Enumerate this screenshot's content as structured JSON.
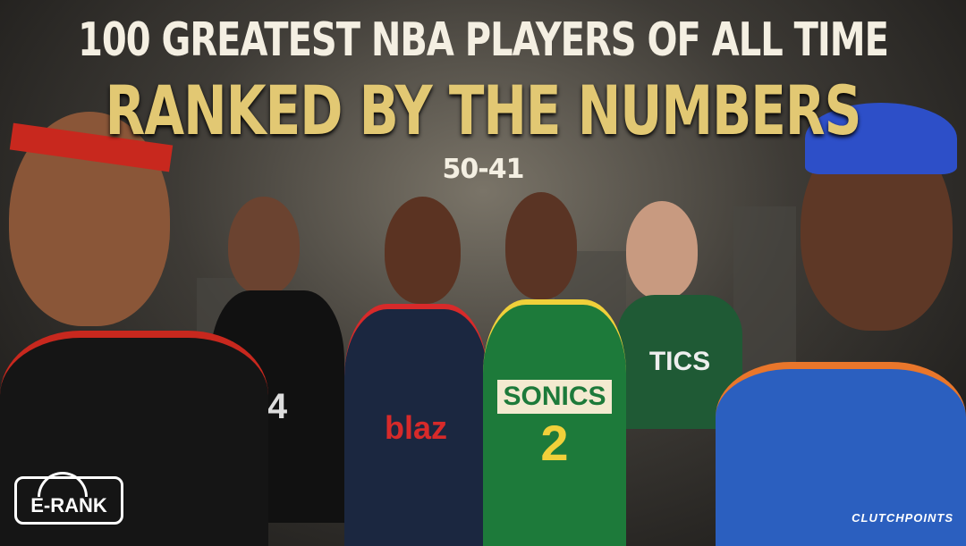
{
  "header": {
    "title_line1": "100 GREATEST NBA PLAYERS OF ALL TIME",
    "title_line2": "RANKED BY THE NUMBERS",
    "range": "50-41"
  },
  "jerseys": {
    "blazers": "blaz",
    "sonics": "SONICS",
    "sonics_number": "2",
    "celtics": "TICS",
    "spurs_number": "4"
  },
  "logos": {
    "left": "E-RANK",
    "right": "CLUTCHPOINTS"
  },
  "colors": {
    "title_white": "#f4efe2",
    "title_gold": "#e2c873",
    "background": "#3e3b36"
  }
}
